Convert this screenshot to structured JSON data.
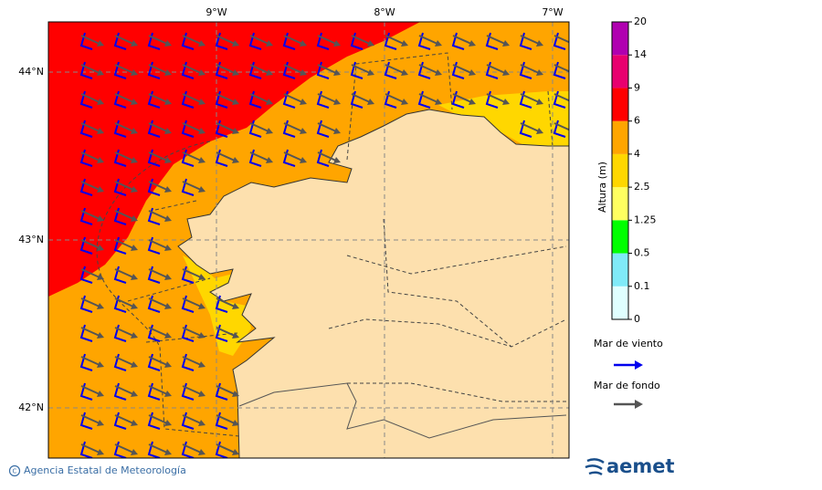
{
  "map": {
    "lon_labels": [
      "9°W",
      "8°W",
      "7°W"
    ],
    "lat_labels": [
      "44°N",
      "43°N",
      "42°N"
    ]
  },
  "colorbar": {
    "title": "Altura (m)",
    "ticks": [
      0,
      0.1,
      0.5,
      1.25,
      2.5,
      4,
      6,
      9,
      14,
      20
    ],
    "colors": [
      "#e0ffff",
      "#80eaf8",
      "#00ff00",
      "#ffff60",
      "#ffd700",
      "#ffa500",
      "#ff0000",
      "#e8006f",
      "#b000b0"
    ]
  },
  "legend": {
    "items": [
      {
        "label": "Mar de viento",
        "color": "#0000ee"
      },
      {
        "label": "Mar de fondo",
        "color": "#555555"
      }
    ]
  },
  "footer": {
    "credit": "Agencia Estatal de Meteorología",
    "logo": "aemet"
  }
}
